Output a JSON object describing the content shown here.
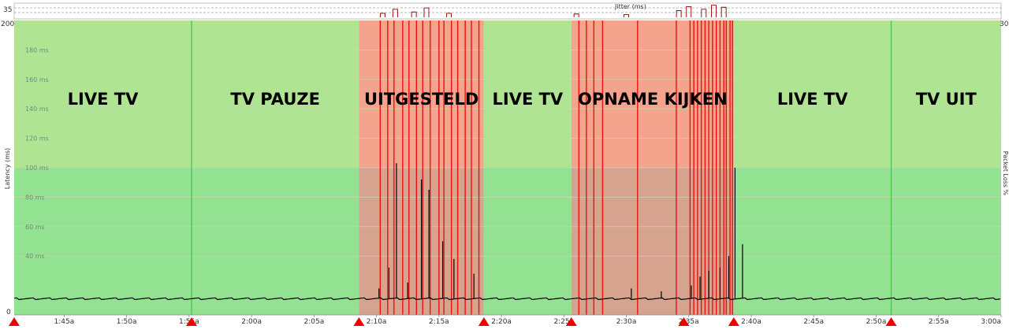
{
  "chart_data": {
    "type": "line",
    "ylabel": "Latency (ms)",
    "y2label": "Packet Loss %",
    "top_panel_label": "Jitter (ms)",
    "top_panel_value": "35",
    "ylim": [
      0,
      200
    ],
    "y_tick_top": "200",
    "y_tick_bottom": "0",
    "y2_tick_top": "30",
    "grid_labels": [
      {
        "value": 180,
        "label": "180 ms"
      },
      {
        "value": 160,
        "label": "160 ms"
      },
      {
        "value": 140,
        "label": "140 ms"
      },
      {
        "value": 120,
        "label": "120 ms"
      },
      {
        "value": 100,
        "label": "100 ms"
      },
      {
        "value": 80,
        "label": "80 ms"
      },
      {
        "value": 60,
        "label": "60 ms"
      },
      {
        "value": 40,
        "label": "40 ms"
      }
    ],
    "xlim_minutes": [
      101,
      180
    ],
    "x_ticks": [
      {
        "minute": 105,
        "label": "1:45a"
      },
      {
        "minute": 110,
        "label": "1:50a"
      },
      {
        "minute": 115,
        "label": "1:55a"
      },
      {
        "minute": 120,
        "label": "2:00a"
      },
      {
        "minute": 125,
        "label": "2:05a"
      },
      {
        "minute": 130,
        "label": "2:10a"
      },
      {
        "minute": 135,
        "label": "2:15a"
      },
      {
        "minute": 140,
        "label": "2:20a"
      },
      {
        "minute": 145,
        "label": "2:25a"
      },
      {
        "minute": 150,
        "label": "2:30a"
      },
      {
        "minute": 155,
        "label": "2:35a"
      },
      {
        "minute": 160,
        "label": "2:40a"
      },
      {
        "minute": 165,
        "label": "2:45a"
      },
      {
        "minute": 170,
        "label": "2:50a"
      },
      {
        "minute": 175,
        "label": "2:55a"
      },
      {
        "minute": 180,
        "label": "3:00a"
      }
    ],
    "baseline_latency_ms": 11,
    "zones": [
      {
        "label": "LIVE TV",
        "start": 101.0,
        "end": 115.2,
        "status": "ok"
      },
      {
        "label": "TV PAUZE",
        "start": 115.2,
        "end": 128.6,
        "status": "ok"
      },
      {
        "label": "UITGESTELD",
        "start": 128.6,
        "end": 138.6,
        "status": "loss"
      },
      {
        "label": "LIVE TV",
        "start": 138.6,
        "end": 145.6,
        "status": "ok"
      },
      {
        "label": "OPNAME KIJKEN",
        "start": 145.6,
        "end": 158.6,
        "status": "loss"
      },
      {
        "label": "LIVE TV",
        "start": 158.6,
        "end": 171.2,
        "status": "ok"
      },
      {
        "label": "TV UIT",
        "start": 171.2,
        "end": 180.0,
        "status": "ok"
      }
    ],
    "zone_dividers": [
      115.2,
      171.2
    ],
    "markers": [
      101.0,
      115.2,
      128.6,
      138.6,
      145.6,
      154.6,
      158.6,
      171.2
    ],
    "latency_spikes": [
      {
        "minute": 131.6,
        "value": 103
      },
      {
        "minute": 133.6,
        "value": 92
      },
      {
        "minute": 134.2,
        "value": 85
      },
      {
        "minute": 135.3,
        "value": 50
      },
      {
        "minute": 137.8,
        "value": 28
      },
      {
        "minute": 131.0,
        "value": 32
      },
      {
        "minute": 136.2,
        "value": 38
      },
      {
        "minute": 132.5,
        "value": 22
      },
      {
        "minute": 130.2,
        "value": 18
      },
      {
        "minute": 150.4,
        "value": 18
      },
      {
        "minute": 152.8,
        "value": 16
      },
      {
        "minute": 155.2,
        "value": 20
      },
      {
        "minute": 155.9,
        "value": 26
      },
      {
        "minute": 156.6,
        "value": 30
      },
      {
        "minute": 157.5,
        "value": 32
      },
      {
        "minute": 158.2,
        "value": 40
      },
      {
        "minute": 158.7,
        "value": 100
      },
      {
        "minute": 159.3,
        "value": 48
      }
    ],
    "loss_events": [
      130.3,
      130.9,
      131.4,
      132.1,
      132.6,
      133.2,
      133.7,
      134.3,
      135.0,
      135.4,
      136.0,
      136.5,
      137.1,
      137.6,
      138.2,
      146.2,
      146.8,
      147.4,
      148.1,
      150.9,
      154.0,
      155.1,
      155.4,
      155.7,
      156.0,
      156.3,
      156.6,
      156.9,
      157.2,
      157.5,
      157.8,
      158.0,
      158.3,
      158.5
    ],
    "jitter": [
      {
        "minute": 130.5,
        "value": 6
      },
      {
        "minute": 131.5,
        "value": 12
      },
      {
        "minute": 133.0,
        "value": 8
      },
      {
        "minute": 134.0,
        "value": 14
      },
      {
        "minute": 135.8,
        "value": 6
      },
      {
        "minute": 146.0,
        "value": 5
      },
      {
        "minute": 150.0,
        "value": 4
      },
      {
        "minute": 154.2,
        "value": 10
      },
      {
        "minute": 155.0,
        "value": 16
      },
      {
        "minute": 156.2,
        "value": 12
      },
      {
        "minute": 157.0,
        "value": 18
      },
      {
        "minute": 157.8,
        "value": 15
      }
    ],
    "colors": {
      "ok_upper": "#aee492",
      "ok_lower": "#92e292",
      "loss_upper": "#f4a48c",
      "loss_lower": "#d6a38e",
      "loss_line": "#ee1010",
      "latency_line": "#000000",
      "grid": "#c5d8b8",
      "divider": "#4cc34c",
      "marker": "#ee0000",
      "jitter_line": "#8b0000",
      "y2_label": "#a0302a"
    }
  }
}
